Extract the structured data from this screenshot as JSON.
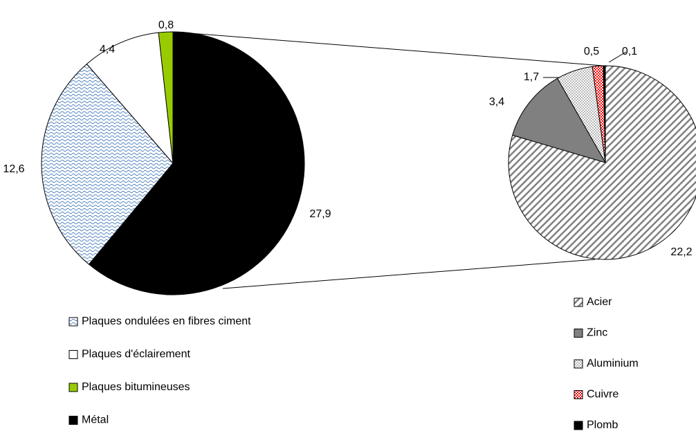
{
  "chart_data": [
    {
      "type": "pie",
      "categories": [
        "Plaques ondulées en fibres ciment",
        "Plaques d'éclairement",
        "Plaques bitumineuses",
        "Métal"
      ],
      "values": [
        12.6,
        4.4,
        0.8,
        27.9
      ],
      "value_labels": [
        "12,6",
        "4,4",
        "0,8",
        "27,9"
      ],
      "colors": [
        "#4f81bd",
        "#ffffff",
        "#99cc00",
        "#000000"
      ]
    },
    {
      "type": "pie",
      "categories": [
        "Acier",
        "Zinc",
        "Aluminium",
        "Cuivre",
        "Plomb"
      ],
      "values": [
        22.2,
        3.4,
        1.7,
        0.5,
        0.1
      ],
      "value_labels": [
        "22,2",
        "3,4",
        "1,7",
        "0,5",
        "0,1"
      ],
      "colors": [
        "#808080",
        "#808080",
        "#a0a0a0",
        "#ff0000",
        "#000000"
      ]
    }
  ]
}
